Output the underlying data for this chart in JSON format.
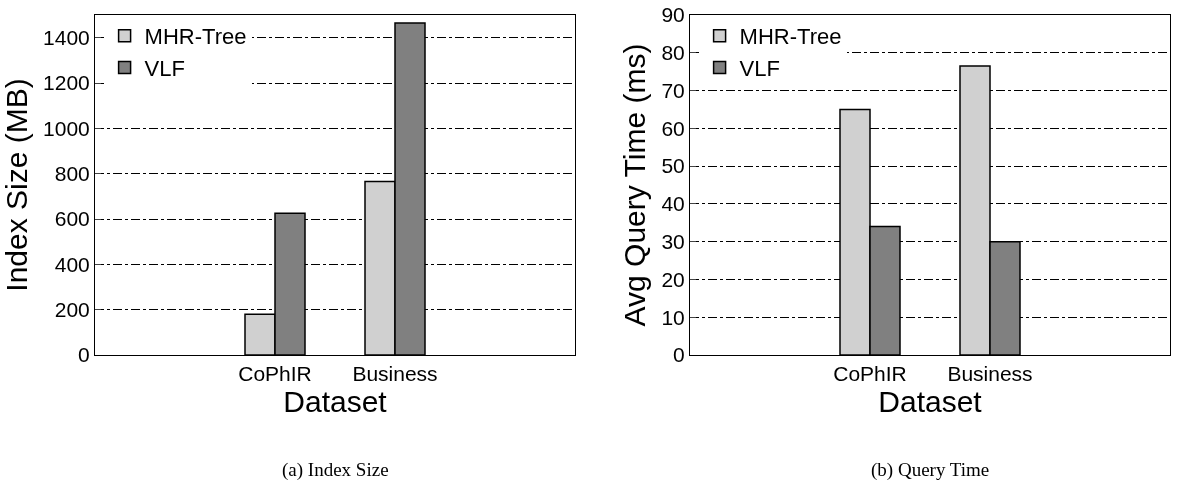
{
  "chart_data": [
    {
      "type": "bar",
      "title": "(a) Index Size",
      "xlabel": "Dataset",
      "ylabel": "Index Size (MB)",
      "categories": [
        null,
        "CoPhIR",
        "Business",
        null
      ],
      "series": [
        {
          "name": "MHR-Tree",
          "color": "#d0d0d0",
          "values": [
            null,
            180,
            765,
            null
          ]
        },
        {
          "name": "VLF",
          "color": "#808080",
          "values": [
            null,
            625,
            1465,
            null
          ]
        }
      ],
      "ylim": [
        0,
        1500
      ],
      "yticks": [
        0,
        200,
        400,
        600,
        800,
        1000,
        1200,
        1400
      ],
      "grid": "y",
      "legend": "top left"
    },
    {
      "type": "bar",
      "title": "(b) Query Time",
      "xlabel": "Dataset",
      "ylabel": "Avg Query Time (ms)",
      "categories": [
        null,
        "CoPhIR",
        "Business",
        null
      ],
      "series": [
        {
          "name": "MHR-Tree",
          "color": "#d0d0d0",
          "values": [
            null,
            65,
            76.5,
            null
          ]
        },
        {
          "name": "VLF",
          "color": "#808080",
          "values": [
            null,
            34,
            30,
            null
          ]
        }
      ],
      "ylim": [
        0,
        90
      ],
      "yticks": [
        0,
        10,
        20,
        30,
        40,
        50,
        60,
        70,
        80,
        90
      ],
      "grid": "y",
      "legend": "top left"
    }
  ]
}
